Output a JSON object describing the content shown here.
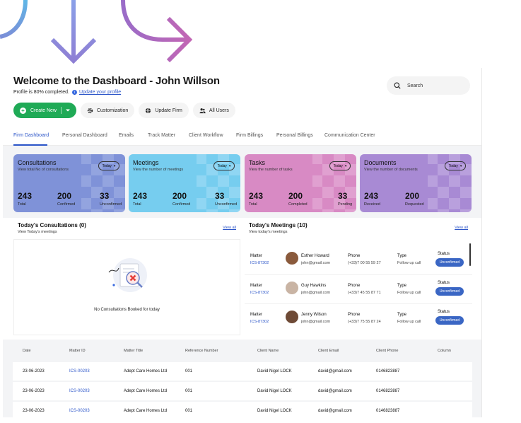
{
  "header": {
    "title": "Welcome to the Dashboard - John Willson",
    "profile_status": "Profile is 80% completed.",
    "profile_link": "Update your profile",
    "search_placeholder": "Search"
  },
  "actions": {
    "create": "Create New",
    "customization": "Customization",
    "update_firm": "Update Firm",
    "all_users": "All Users"
  },
  "tabs": [
    {
      "label": "Firm Dashboard",
      "active": true
    },
    {
      "label": "Personal Dashboard"
    },
    {
      "label": "Emails"
    },
    {
      "label": "Track Matter"
    },
    {
      "label": "Client Workflow"
    },
    {
      "label": "Firm Billings"
    },
    {
      "label": "Personal Billings"
    },
    {
      "label": "Communication Center"
    }
  ],
  "stat_cards": [
    {
      "title": "Consultations",
      "subtitle": "View total No of consultations",
      "filter": "Today",
      "metrics": [
        {
          "value": "243",
          "label": "Total"
        },
        {
          "value": "200",
          "label": "Confirmed"
        },
        {
          "value": "33",
          "label": "Unconfirmed"
        }
      ],
      "color": "#7f92d8",
      "color_light": "#a4b2e6"
    },
    {
      "title": "Meetings",
      "subtitle": "View the number of meetings",
      "filter": "Today",
      "metrics": [
        {
          "value": "243",
          "label": "Total"
        },
        {
          "value": "200",
          "label": "Confirmed"
        },
        {
          "value": "33",
          "label": "Unconfirmed"
        }
      ],
      "color": "#76cdef",
      "color_light": "#a5def5"
    },
    {
      "title": "Tasks",
      "subtitle": "View the number of tasks",
      "filter": "Today",
      "metrics": [
        {
          "value": "243",
          "label": "Total"
        },
        {
          "value": "200",
          "label": "Completed"
        },
        {
          "value": "33",
          "label": "Pending"
        }
      ],
      "color": "#d88ac4",
      "color_light": "#e8b3da"
    },
    {
      "title": "Documents",
      "subtitle": "View the number of documents",
      "filter": "Today",
      "metrics": [
        {
          "value": "243",
          "label": "Received"
        },
        {
          "value": "200",
          "label": "Requested"
        }
      ],
      "color": "#a88ad4",
      "color_light": "#c6b2e4"
    }
  ],
  "consultations": {
    "title": "Today's Consultations (0)",
    "subtitle": "View Today's meetings",
    "view_all": "View all",
    "empty_text": "No Consultations Booked for today"
  },
  "meetings": {
    "title": "Today's Meetings (10)",
    "subtitle": "View today's meetings",
    "view_all": "View all",
    "labels": {
      "matter": "Matter",
      "phone": "Phone",
      "type": "Type",
      "status": "Status"
    },
    "rows": [
      {
        "matter": "ICS-87302",
        "name": "Esther Howard",
        "email": "john@gmail.com",
        "phone": "(+33)7 00 55 59 27",
        "type": "Follow up call",
        "status": "Unconfirmed",
        "avatar_color": "#8a5a3c"
      },
      {
        "matter": "ICS-87302",
        "name": "Guy Hawkins",
        "email": "john@gmail.com",
        "phone": "(+33)7 45 55 87 71",
        "type": "Follow up call",
        "status": "Unconfirmed",
        "avatar_color": "#c9b4a4"
      },
      {
        "matter": "ICS-87302",
        "name": "Jenny Wilson",
        "email": "john@gmail.com",
        "phone": "(+33)7 75 55 87 24",
        "type": "Follow up call",
        "status": "Unconfirmed",
        "avatar_color": "#6e4a36"
      }
    ]
  },
  "table": {
    "columns": [
      "Date",
      "Matter ID",
      "Matter Title",
      "Reference Number",
      "Client Name",
      "Client Email",
      "Client Phone",
      "Column"
    ],
    "rows": [
      [
        "23-06-2023",
        "ICS-00203",
        "Adept Care Homes Ltd",
        "001",
        "David Nigel LOCK",
        "david@gmail.com",
        "0146823887"
      ],
      [
        "23-06-2023",
        "ICS-00203",
        "Adept Care Homes Ltd",
        "001",
        "David Nigel LOCK",
        "david@gmail.com",
        "0146823887"
      ],
      [
        "23-06-2023",
        "ICS-00203",
        "Adept Care Homes Ltd",
        "001",
        "David Nigel LOCK",
        "david@gmail.com",
        "0146823887"
      ]
    ]
  },
  "colors": {
    "accent": "#2a54c8",
    "primary_button": "#1faa56",
    "badge": "#3a66c4"
  }
}
